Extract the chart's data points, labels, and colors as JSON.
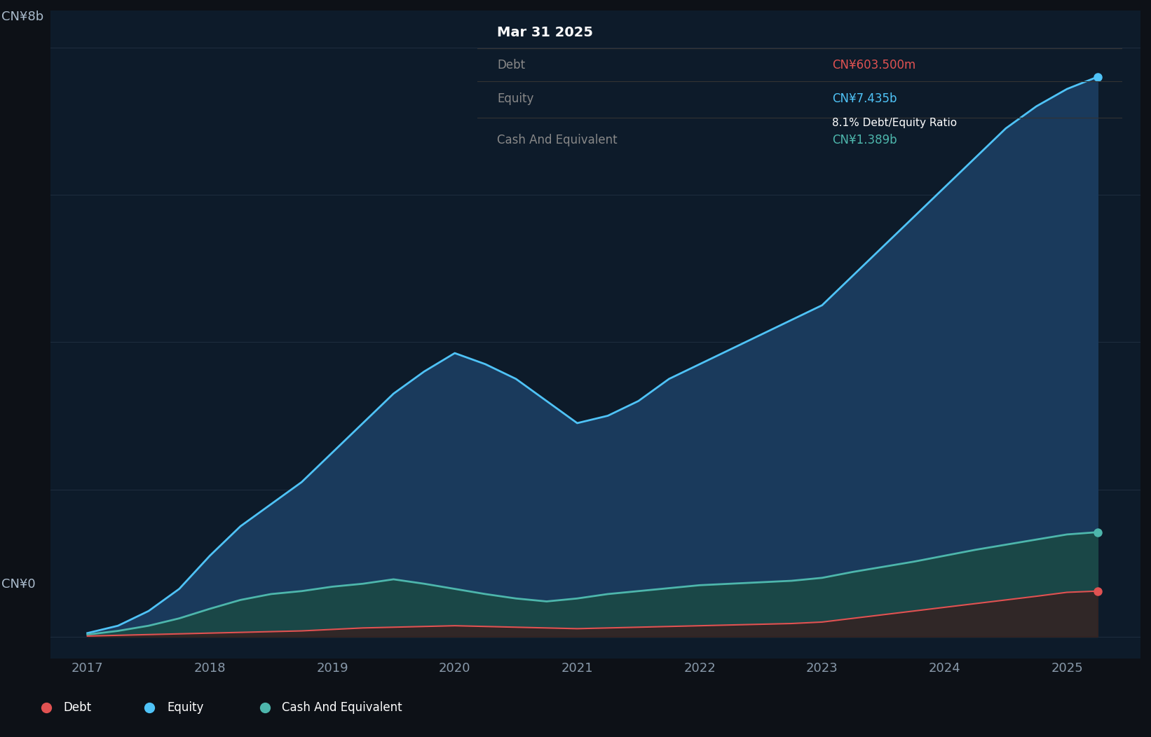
{
  "bg_color": "#0d1117",
  "plot_bg_color": "#0d1b2a",
  "grid_color": "#1e2d3d",
  "title_label": "CN¥8b",
  "zero_label": "CN¥0",
  "x_ticks": [
    2017,
    2018,
    2019,
    2020,
    2021,
    2022,
    2023,
    2024,
    2025
  ],
  "tooltip_title": "Mar 31 2025",
  "tooltip_debt_label": "Debt",
  "tooltip_debt_value": "CN¥603.500m",
  "tooltip_equity_label": "Equity",
  "tooltip_equity_value": "CN¥7.435b",
  "tooltip_ratio": "8.1% Debt/Equity Ratio",
  "tooltip_cash_label": "Cash And Equivalent",
  "tooltip_cash_value": "CN¥1.389b",
  "debt_color": "#e05252",
  "equity_color": "#4fc3f7",
  "cash_color": "#4db6ac",
  "equity_fill_color": "#1a3a5c",
  "cash_fill_color": "#1a4a44",
  "debt_fill_color": "#3a1a1a",
  "years": [
    2017.0,
    2017.25,
    2017.5,
    2017.75,
    2018.0,
    2018.25,
    2018.5,
    2018.75,
    2019.0,
    2019.25,
    2019.5,
    2019.75,
    2020.0,
    2020.25,
    2020.5,
    2020.75,
    2021.0,
    2021.25,
    2021.5,
    2021.75,
    2022.0,
    2022.25,
    2022.5,
    2022.75,
    2023.0,
    2023.25,
    2023.5,
    2023.75,
    2024.0,
    2024.25,
    2024.5,
    2024.75,
    2025.0,
    2025.25
  ],
  "equity": [
    0.05,
    0.15,
    0.35,
    0.65,
    1.1,
    1.5,
    1.8,
    2.1,
    2.5,
    2.9,
    3.3,
    3.6,
    3.85,
    3.7,
    3.5,
    3.2,
    2.9,
    3.0,
    3.2,
    3.5,
    3.7,
    3.9,
    4.1,
    4.3,
    4.5,
    4.9,
    5.3,
    5.7,
    6.1,
    6.5,
    6.9,
    7.2,
    7.435,
    7.6
  ],
  "cash": [
    0.03,
    0.08,
    0.15,
    0.25,
    0.38,
    0.5,
    0.58,
    0.62,
    0.68,
    0.72,
    0.78,
    0.72,
    0.65,
    0.58,
    0.52,
    0.48,
    0.52,
    0.58,
    0.62,
    0.66,
    0.7,
    0.72,
    0.74,
    0.76,
    0.8,
    0.88,
    0.95,
    1.02,
    1.1,
    1.18,
    1.25,
    1.32,
    1.389,
    1.42
  ],
  "debt": [
    0.01,
    0.02,
    0.03,
    0.04,
    0.05,
    0.06,
    0.07,
    0.08,
    0.1,
    0.12,
    0.13,
    0.14,
    0.15,
    0.14,
    0.13,
    0.12,
    0.11,
    0.12,
    0.13,
    0.14,
    0.15,
    0.16,
    0.17,
    0.18,
    0.2,
    0.25,
    0.3,
    0.35,
    0.4,
    0.45,
    0.5,
    0.55,
    0.6035,
    0.62
  ],
  "ylim_max": 8.5,
  "ylim_min": -0.3
}
